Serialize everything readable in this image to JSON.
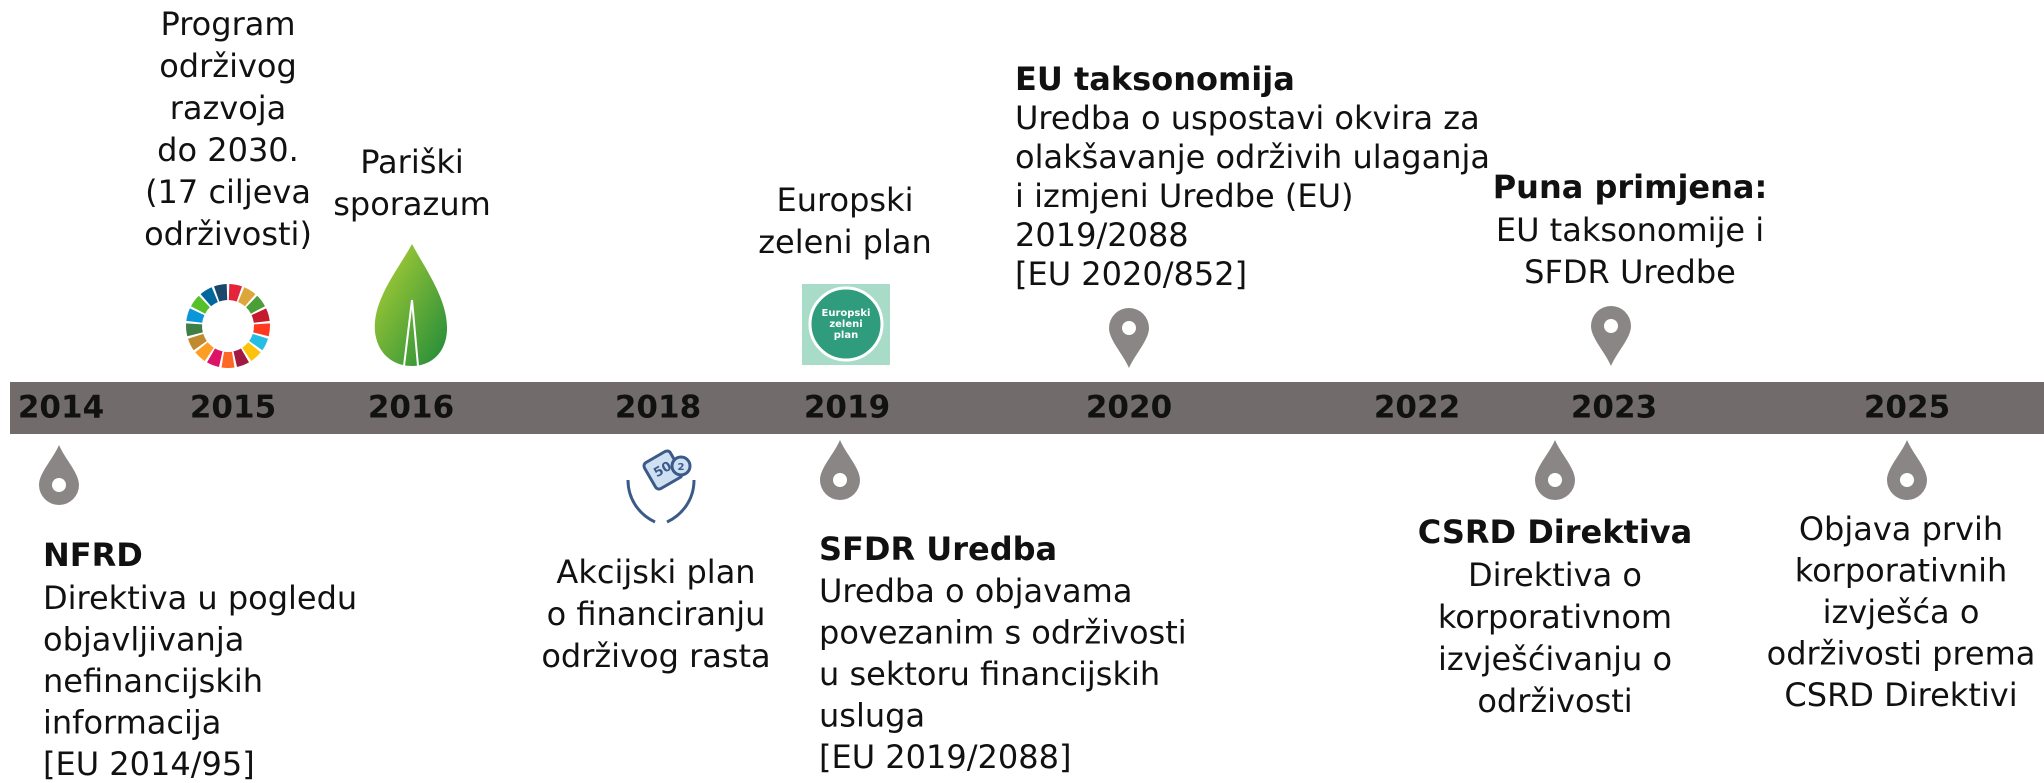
{
  "timeline": {
    "years": [
      "2014",
      "2015",
      "2016",
      "2018",
      "2019",
      "2020",
      "2022",
      "2023",
      "2025"
    ],
    "above": [
      {
        "lines": [
          "Program",
          "održivog",
          "razvoja",
          "do 2030.",
          "(17 ciljeva",
          "održivosti)"
        ]
      },
      {
        "lines": [
          "Pariški",
          "sporazum"
        ]
      },
      {
        "lines": [
          "Europski",
          "zeleni plan"
        ],
        "icon_text": [
          "Europski",
          "zeleni",
          "plan"
        ]
      },
      {
        "title": "EU taksonomija",
        "lines": [
          "Uredba o uspostavi okvira za",
          "olakšavanje održivih ulaganja",
          "i izmjeni Uredbe (EU)",
          "2019/2088",
          "[EU 2020/852]"
        ]
      },
      {
        "title": "Puna primjena:",
        "lines": [
          "EU taksonomije i",
          "SFDR Uredbe"
        ]
      }
    ],
    "below": [
      {
        "title": "NFRD",
        "lines": [
          "Direktiva u pogledu",
          "objavljivanja",
          "nefinancijskih",
          "informacija",
          "[EU 2014/95]"
        ]
      },
      {
        "lines": [
          "Akcijski plan",
          "o financiranju",
          "održivog rasta"
        ],
        "icon_text": [
          "50",
          "2"
        ]
      },
      {
        "title": "SFDR Uredba",
        "lines": [
          "Uredba o objavama",
          "povezanim s održivosti",
          "u sektoru financijskih",
          "usluga",
          "[EU 2019/2088]"
        ]
      },
      {
        "title": "CSRD Direktiva",
        "lines": [
          "Direktiva o",
          "korporativnom",
          "izvješćivanju o",
          "održivosti"
        ]
      },
      {
        "lines": [
          "Objava prvih",
          "korporativnih",
          "izvješća o",
          "održivosti prema",
          "CSRD Direktivi"
        ]
      }
    ]
  }
}
